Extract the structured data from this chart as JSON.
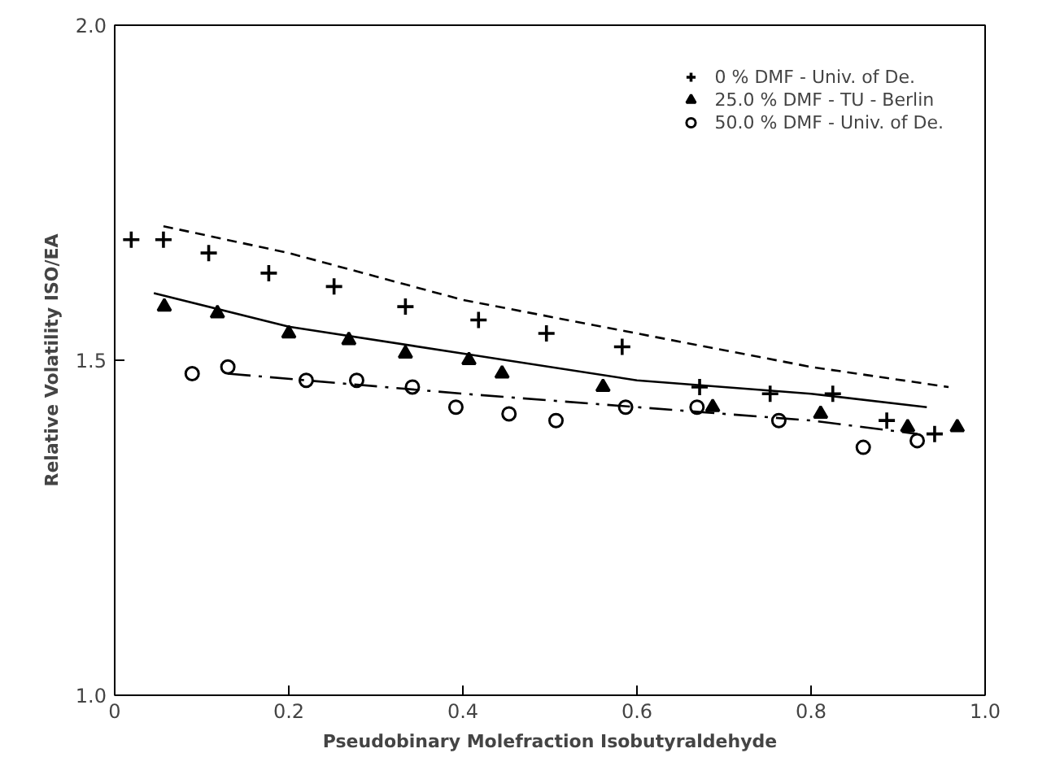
{
  "chart_data": {
    "type": "scatter",
    "xlabel": "Pseudobinary Molefraction Isobutyraldehyde",
    "ylabel": "Relative Volatility ISO/EA",
    "xlim": [
      0,
      1.0
    ],
    "ylim": [
      1.0,
      2.0
    ],
    "xticks": [
      0,
      0.2,
      0.4,
      0.6,
      0.8,
      {
        "value": 1.0,
        "label": "1.0"
      }
    ],
    "yticks": [
      {
        "value": 1.0,
        "label": "1.0"
      },
      1.5,
      {
        "value": 2.0,
        "label": "2.0"
      }
    ],
    "grid": false,
    "legend": "top right",
    "series": [
      {
        "name": "0 % DMF - Univ. of De.",
        "color": "#000000",
        "marker": "cross",
        "x": [
          0.019,
          0.056,
          0.108,
          0.177,
          0.252,
          0.334,
          0.418,
          0.496,
          0.583,
          0.672,
          0.753,
          0.825,
          0.887,
          0.942
        ],
        "values": [
          1.68,
          1.68,
          1.66,
          1.63,
          1.61,
          1.58,
          1.56,
          1.54,
          1.52,
          1.46,
          1.45,
          1.45,
          1.41,
          1.39
        ]
      },
      {
        "name": "25.0 % DMF - TU - Berlin",
        "color": "#000000",
        "marker": "triangle",
        "x": [
          0.057,
          0.118,
          0.2,
          0.269,
          0.334,
          0.407,
          0.445,
          0.561,
          0.687,
          0.811,
          0.911,
          0.968
        ],
        "values": [
          1.58,
          1.57,
          1.54,
          1.53,
          1.51,
          1.5,
          1.48,
          1.46,
          1.43,
          1.42,
          1.4,
          1.4
        ]
      },
      {
        "name": "50.0 % DMF - Univ. of De.",
        "color": "#000000",
        "marker": "circle",
        "x": [
          0.089,
          0.13,
          0.22,
          0.278,
          0.342,
          0.392,
          0.453,
          0.507,
          0.587,
          0.669,
          0.763,
          0.86,
          0.922
        ],
        "values": [
          1.48,
          1.49,
          1.47,
          1.47,
          1.46,
          1.43,
          1.42,
          1.41,
          1.43,
          1.43,
          1.41,
          1.37,
          1.38
        ]
      },
      {
        "type": "line",
        "color": "#000000",
        "line_style": "dashed",
        "x": [
          0.056,
          0.2,
          0.4,
          0.6,
          0.8,
          0.958
        ],
        "values": [
          1.7,
          1.66,
          1.59,
          1.54,
          1.49,
          1.46
        ]
      },
      {
        "type": "line",
        "color": "#000000",
        "line_style": "solid",
        "x": [
          0.045,
          0.2,
          0.4,
          0.6,
          0.8,
          0.933
        ],
        "values": [
          1.6,
          1.55,
          1.51,
          1.47,
          1.45,
          1.43
        ]
      },
      {
        "type": "line",
        "color": "#000000",
        "line_style": "dashdot",
        "x": [
          0.13,
          0.4,
          0.6,
          0.8,
          0.922
        ],
        "values": [
          1.48,
          1.45,
          1.43,
          1.41,
          1.39
        ]
      }
    ]
  }
}
